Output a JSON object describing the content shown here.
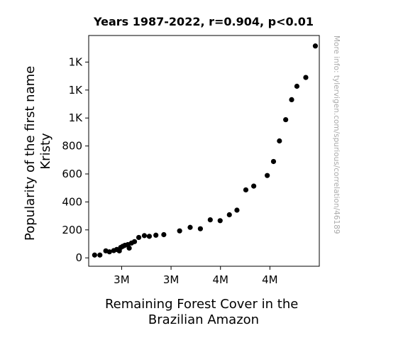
{
  "chart_data": {
    "type": "scatter",
    "title": "Years 1987-2022, r=0.904, p<0.01",
    "xlabel": [
      "Remaining Forest Cover in the",
      "Brazilian Amazon"
    ],
    "ylabel": [
      "Popularity of the first name",
      "Kristy"
    ],
    "watermark": "More info: tylervigen.com/spurious/correlation/46189",
    "marker_color": "#000000",
    "xlim": [
      3280000,
      3980000
    ],
    "ylim": [
      -60,
      1590
    ],
    "x_ticks": [
      {
        "value": 3380000,
        "label": "3M"
      },
      {
        "value": 3530000,
        "label": "3M"
      },
      {
        "value": 3680000,
        "label": "4M"
      },
      {
        "value": 3830000,
        "label": "4M"
      }
    ],
    "y_ticks": [
      {
        "value": 0,
        "label": "0"
      },
      {
        "value": 200,
        "label": "200"
      },
      {
        "value": 400,
        "label": "400"
      },
      {
        "value": 600,
        "label": "600"
      },
      {
        "value": 800,
        "label": "800"
      },
      {
        "value": 1000,
        "label": "1K"
      },
      {
        "value": 1200,
        "label": "1K"
      },
      {
        "value": 1400,
        "label": "1K"
      }
    ],
    "grid": false,
    "points": [
      {
        "x": 3968000,
        "y": 1515
      },
      {
        "x": 3939000,
        "y": 1290
      },
      {
        "x": 3912000,
        "y": 1227
      },
      {
        "x": 3896000,
        "y": 1131
      },
      {
        "x": 3878000,
        "y": 988
      },
      {
        "x": 3859000,
        "y": 836
      },
      {
        "x": 3841000,
        "y": 689
      },
      {
        "x": 3822000,
        "y": 589
      },
      {
        "x": 3781000,
        "y": 513
      },
      {
        "x": 3757000,
        "y": 486
      },
      {
        "x": 3730000,
        "y": 341
      },
      {
        "x": 3707000,
        "y": 308
      },
      {
        "x": 3679000,
        "y": 266
      },
      {
        "x": 3649000,
        "y": 272
      },
      {
        "x": 3619000,
        "y": 208
      },
      {
        "x": 3588000,
        "y": 218
      },
      {
        "x": 3556000,
        "y": 193
      },
      {
        "x": 3508000,
        "y": 166
      },
      {
        "x": 3484000,
        "y": 162
      },
      {
        "x": 3464000,
        "y": 154
      },
      {
        "x": 3449000,
        "y": 159
      },
      {
        "x": 3432000,
        "y": 146
      },
      {
        "x": 3419000,
        "y": 116
      },
      {
        "x": 3410000,
        "y": 106
      },
      {
        "x": 3403000,
        "y": 70
      },
      {
        "x": 3399000,
        "y": 95
      },
      {
        "x": 3390000,
        "y": 90
      },
      {
        "x": 3383000,
        "y": 82
      },
      {
        "x": 3377000,
        "y": 74
      },
      {
        "x": 3373000,
        "y": 50
      },
      {
        "x": 3365000,
        "y": 60
      },
      {
        "x": 3356000,
        "y": 52
      },
      {
        "x": 3343000,
        "y": 43
      },
      {
        "x": 3332000,
        "y": 50
      },
      {
        "x": 3314000,
        "y": 20
      },
      {
        "x": 3298000,
        "y": 20
      }
    ]
  }
}
